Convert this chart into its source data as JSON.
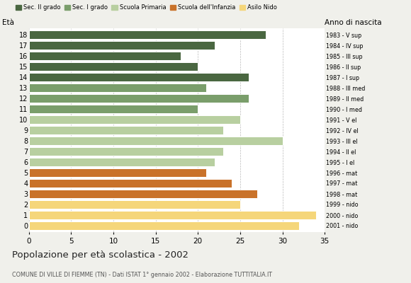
{
  "ages": [
    18,
    17,
    16,
    15,
    14,
    13,
    12,
    11,
    10,
    9,
    8,
    7,
    6,
    5,
    4,
    3,
    2,
    1,
    0
  ],
  "values": [
    28,
    22,
    18,
    20,
    26,
    21,
    26,
    20,
    25,
    23,
    30,
    23,
    22,
    21,
    24,
    27,
    25,
    34,
    32
  ],
  "right_labels": [
    "1983 - V sup",
    "1984 - IV sup",
    "1985 - III sup",
    "1986 - II sup",
    "1987 - I sup",
    "1988 - III med",
    "1989 - II med",
    "1990 - I med",
    "1991 - V el",
    "1992 - IV el",
    "1993 - III el",
    "1994 - II el",
    "1995 - I el",
    "1996 - mat",
    "1997 - mat",
    "1998 - mat",
    "1999 - nido",
    "2000 - nido",
    "2001 - nido"
  ],
  "bar_colors": [
    "#4a6741",
    "#4a6741",
    "#4a6741",
    "#4a6741",
    "#4a6741",
    "#7a9e6b",
    "#7a9e6b",
    "#7a9e6b",
    "#b8cfa0",
    "#b8cfa0",
    "#b8cfa0",
    "#b8cfa0",
    "#b8cfa0",
    "#c9722a",
    "#c9722a",
    "#c9722a",
    "#f5d67a",
    "#f5d67a",
    "#f5d67a"
  ],
  "legend_labels": [
    "Sec. II grado",
    "Sec. I grado",
    "Scuola Primaria",
    "Scuola dell'Infanzia",
    "Asilo Nido"
  ],
  "legend_colors": [
    "#4a6741",
    "#7a9e6b",
    "#b8cfa0",
    "#c9722a",
    "#f5d67a"
  ],
  "title": "Popolazione per età scolastica - 2002",
  "subtitle": "COMUNE DI VILLE DI FIEMME (TN) - Dati ISTAT 1° gennaio 2002 - Elaborazione TUTTITALIA.IT",
  "ylabel": "Età",
  "ylabel_right": "Anno di nascita",
  "xlabel_range": [
    0,
    35
  ],
  "xticks": [
    0,
    5,
    10,
    15,
    20,
    25,
    30,
    35
  ],
  "background_color": "#f0f0eb",
  "bar_background": "#ffffff",
  "grid_color": "#bbbbbb"
}
